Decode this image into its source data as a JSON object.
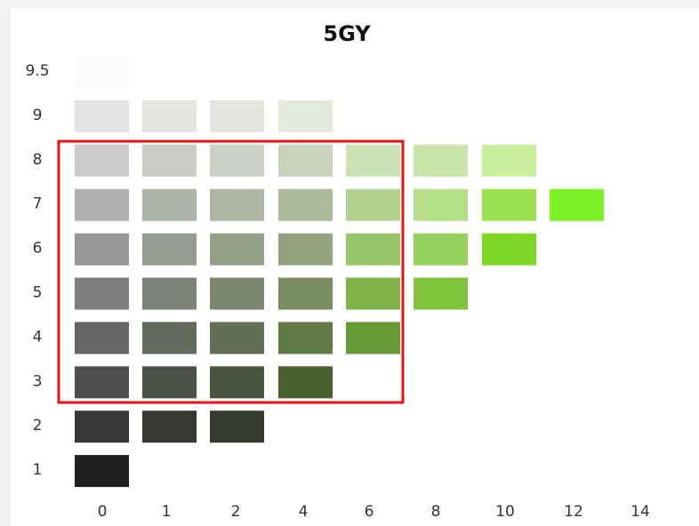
{
  "title": "5GY",
  "rows": [
    {
      "label": "9.5",
      "colors": [
        "#fafafa"
      ]
    },
    {
      "label": "9",
      "colors": [
        "#e4e4e4",
        "#e4e6e1",
        "#e4e7df",
        "#e3eadb"
      ]
    },
    {
      "label": "8",
      "colors": [
        "#cbcbcb",
        "#cacdc5",
        "#cad0c2",
        "#c9d3bb",
        "#c9e1b3",
        "#c8e6ab",
        "#c8f0a0"
      ]
    },
    {
      "label": "7",
      "colors": [
        "#b0b0b0",
        "#aeb3a8",
        "#adb6a4",
        "#acbb9c",
        "#b2d38f",
        "#b4e187",
        "#9be150",
        "#7ef227"
      ]
    },
    {
      "label": "6",
      "colors": [
        "#979797",
        "#959b8e",
        "#949f88",
        "#92a37f",
        "#98c46c",
        "#96d35e",
        "#7ed827"
      ]
    },
    {
      "label": "5",
      "colors": [
        "#7e7e7e",
        "#7c8375",
        "#7b876e",
        "#7a8e64",
        "#7fb34a",
        "#7fc43b"
      ]
    },
    {
      "label": "4",
      "colors": [
        "#666666",
        "#636a5c",
        "#626e56",
        "#5f7a45",
        "#659a36"
      ]
    },
    {
      "label": "3",
      "colors": [
        "#4f4f4f",
        "#4c5146",
        "#4a553f",
        "#4a602f"
      ]
    },
    {
      "label": "2",
      "colors": [
        "#383838",
        "#363a32",
        "#343a2c"
      ]
    },
    {
      "label": "1",
      "colors": [
        "#1f1f1f"
      ]
    }
  ],
  "columns": [
    "0",
    "1",
    "2",
    "4",
    "6",
    "8",
    "10",
    "12",
    "14"
  ]
}
